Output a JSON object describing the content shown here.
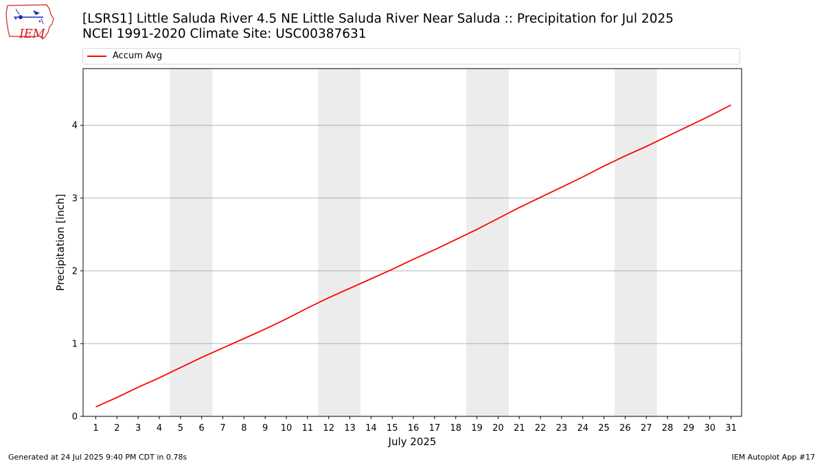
{
  "header": {
    "logo_text": "IEM",
    "title_line1": "[LSRS1] Little Saluda River 4.5 NE Little Saluda River Near Saluda :: Precipitation for Jul 2025",
    "title_line2": "NCEI 1991-2020 Climate Site: USC00387631"
  },
  "footer": {
    "generated": "Generated at 24 Jul 2025 9:40 PM CDT in 0.78s",
    "app": "IEM Autoplot App #17"
  },
  "colors": {
    "series_line": "#ff0000",
    "weekend_band": "#ececec",
    "grid": "#b0b0b0"
  },
  "chart_data": {
    "type": "line",
    "xlabel": "July 2025",
    "ylabel": "Precipitation [inch]",
    "xlim": [
      0.4,
      31.5
    ],
    "ylim": [
      0,
      4.78
    ],
    "yticks": [
      0,
      1,
      2,
      3,
      4
    ],
    "grid": "horizontal",
    "legend_placement": "top",
    "shaded_days": [
      [
        5,
        6
      ],
      [
        12,
        13
      ],
      [
        19,
        20
      ],
      [
        26,
        27
      ]
    ],
    "x": [
      1,
      2,
      3,
      4,
      5,
      6,
      7,
      8,
      9,
      10,
      11,
      12,
      13,
      14,
      15,
      16,
      17,
      18,
      19,
      20,
      21,
      22,
      23,
      24,
      25,
      26,
      27,
      28,
      29,
      30,
      31
    ],
    "series": [
      {
        "name": "Accum Avg",
        "values": [
          0.13,
          0.26,
          0.4,
          0.53,
          0.67,
          0.81,
          0.94,
          1.07,
          1.2,
          1.34,
          1.49,
          1.63,
          1.76,
          1.89,
          2.02,
          2.16,
          2.29,
          2.43,
          2.57,
          2.72,
          2.87,
          3.01,
          3.15,
          3.29,
          3.44,
          3.58,
          3.71,
          3.85,
          3.99,
          4.13,
          4.28
        ]
      }
    ]
  }
}
